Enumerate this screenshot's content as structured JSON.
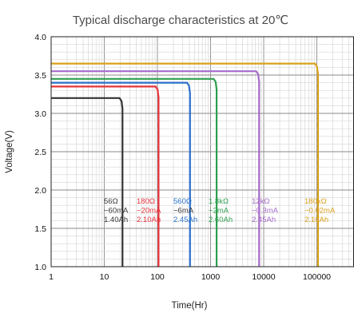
{
  "chart_data": {
    "type": "line",
    "title": "Typical discharge characteristics at 20℃",
    "xlabel": "Time(Hr)",
    "ylabel": "Voltage(V)",
    "x_scale": "log",
    "xlim": [
      1,
      500000
    ],
    "ylim": [
      1.0,
      4.0
    ],
    "grid": true,
    "x_tick_labels": [
      "1",
      "10",
      "100",
      "1000",
      "10000",
      "100000"
    ],
    "y_tick_labels": [
      "1.0",
      "1.5",
      "2.0",
      "2.5",
      "3.0",
      "3.5",
      "4.0"
    ],
    "series": [
      {
        "color": "#333333",
        "voltage": 3.2,
        "end_time": 22,
        "label_lines": [
          "56Ω",
          "~60mA",
          "1.40Ah"
        ]
      },
      {
        "color": "#e8333c",
        "voltage": 3.35,
        "end_time": 105,
        "label_lines": [
          "180Ω",
          "~20mA",
          "2.10Ah"
        ]
      },
      {
        "color": "#2a6fc9",
        "voltage": 3.4,
        "end_time": 410,
        "label_lines": [
          "560Ω",
          "~6mA",
          "2.45Ah"
        ]
      },
      {
        "color": "#2e9e4f",
        "voltage": 3.45,
        "end_time": 1300,
        "label_lines": [
          "1.8kΩ",
          "~2mA",
          "2.60Ah"
        ]
      },
      {
        "color": "#a66bc9",
        "voltage": 3.55,
        "end_time": 8200,
        "label_lines": [
          "12kΩ",
          "~0.3mA",
          "2.45Ah"
        ]
      },
      {
        "color": "#d9a21b",
        "voltage": 3.65,
        "end_time": 105000,
        "label_lines": [
          "180kΩ",
          "~0.02mA",
          "2.10Ah"
        ]
      }
    ]
  }
}
